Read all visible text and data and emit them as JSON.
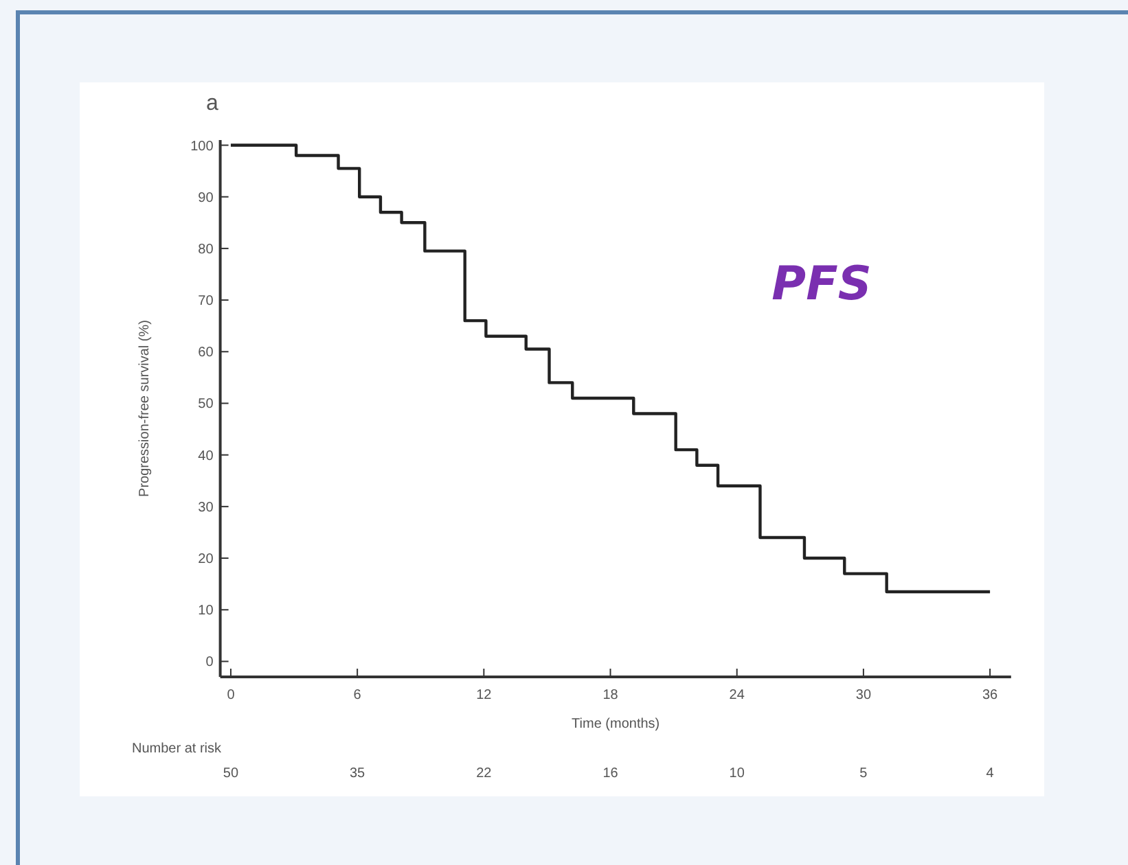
{
  "chart_data": {
    "type": "step",
    "xlabel": "Time (months)",
    "ylabel": "Progression-free survival (%)",
    "annotations": [
      "a",
      "PFS",
      "Number at risk",
      "50",
      "35",
      "22",
      "16",
      "10",
      "5",
      "4"
    ],
    "series": [
      {
        "color": "#222222",
        "x": [
          0,
          3.1,
          5.1,
          6.1,
          7.1,
          8.1,
          9.2,
          11.1,
          12.1,
          14,
          15.1,
          16.2,
          19.1,
          21.1,
          22.1,
          23.1,
          25.1,
          27.2,
          29.1,
          31.1,
          36
        ],
        "values": [
          100,
          98,
          95.5,
          90,
          87,
          85,
          79.5,
          66,
          63,
          60.5,
          54,
          51,
          48,
          41,
          38,
          34,
          24,
          20,
          17,
          13.5,
          13.5
        ]
      }
    ],
    "xlim": [
      -0.5,
      37
    ],
    "xticks": [
      0,
      6,
      12,
      18,
      24,
      30,
      36
    ],
    "ylim": [
      -3,
      101
    ],
    "yticks": [
      0,
      10,
      20,
      30,
      40,
      50,
      60,
      70,
      80,
      90,
      100
    ],
    "grid": false,
    "marker": "none",
    "line_style": "solid"
  }
}
